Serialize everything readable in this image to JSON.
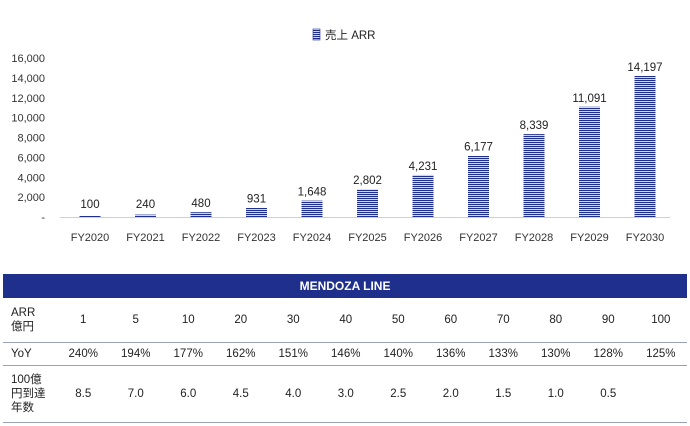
{
  "chart_data": {
    "type": "bar",
    "legend": "売上 ARR",
    "categories": [
      "FY2020",
      "FY2021",
      "FY2022",
      "FY2023",
      "FY2024",
      "FY2025",
      "FY2026",
      "FY2027",
      "FY2028",
      "FY2029",
      "FY2030"
    ],
    "values": [
      100,
      240,
      480,
      931,
      1648,
      2802,
      4231,
      6177,
      8339,
      11091,
      14197
    ],
    "value_labels": [
      "100",
      "240",
      "480",
      "931",
      "1,648",
      "2,802",
      "4,231",
      "6,177",
      "8,339",
      "11,091",
      "14,197"
    ],
    "yticks": [
      0,
      2000,
      4000,
      6000,
      8000,
      10000,
      12000,
      14000,
      16000
    ],
    "ytick_labels": [
      "-",
      "2,000",
      "4,000",
      "6,000",
      "8,000",
      "10,000",
      "12,000",
      "14,000",
      "16,000"
    ],
    "ylim": [
      0,
      16000
    ],
    "bar_color": "#1f2f8c",
    "grid": false
  },
  "table": {
    "title": "MENDOZA LINE",
    "rows": [
      {
        "head": "ARR\n億円",
        "cells": [
          "1",
          "5",
          "10",
          "20",
          "30",
          "40",
          "50",
          "60",
          "70",
          "80",
          "90",
          "100"
        ]
      },
      {
        "head": "YoY",
        "cells": [
          "240%",
          "194%",
          "177%",
          "162%",
          "151%",
          "146%",
          "140%",
          "136%",
          "133%",
          "130%",
          "128%",
          "125%"
        ]
      },
      {
        "head": "100億\n円到達\n年数",
        "cells": [
          "8.5",
          "7.0",
          "6.0",
          "4.5",
          "4.0",
          "3.0",
          "2.5",
          "2.0",
          "1.5",
          "1.0",
          "0.5",
          ""
        ]
      }
    ]
  }
}
